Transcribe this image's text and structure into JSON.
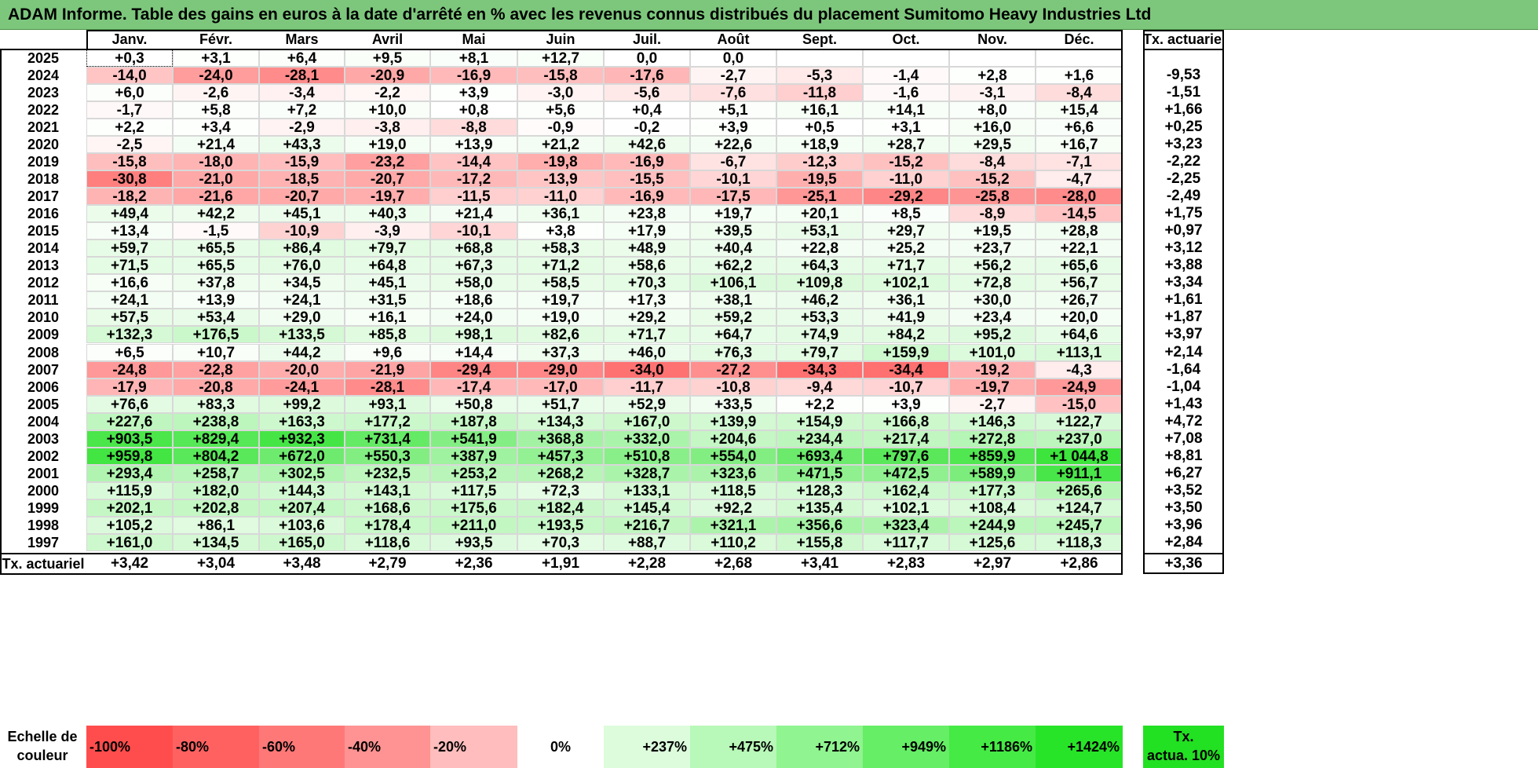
{
  "title": "ADAM Informe. Table des gains en euros à la date d'arrêté en % avec les revenus connus distribués du placement Sumitomo Heavy Industries Ltd",
  "months": [
    "Janv.",
    "Févr.",
    "Mars",
    "Avril",
    "Mai",
    "Juin",
    "Juil.",
    "Août",
    "Sept.",
    "Oct.",
    "Nov.",
    "Déc."
  ],
  "tx_header": "Tx. actuariel",
  "rows": [
    {
      "year": "2025",
      "values": [
        "+0,3",
        "+3,1",
        "+6,4",
        "+9,5",
        "+8,1",
        "+12,7",
        "0,0",
        "0,0",
        "",
        "",
        "",
        ""
      ],
      "tx": ""
    },
    {
      "year": "2024",
      "values": [
        "-14,0",
        "-24,0",
        "-28,1",
        "-20,9",
        "-16,9",
        "-15,8",
        "-17,6",
        "-2,7",
        "-5,3",
        "-1,4",
        "+2,8",
        "+1,6"
      ],
      "tx": "-9,53"
    },
    {
      "year": "2023",
      "values": [
        "+6,0",
        "-2,6",
        "-3,4",
        "-2,2",
        "+3,9",
        "-3,0",
        "-5,6",
        "-7,6",
        "-11,8",
        "-1,6",
        "-3,1",
        "-8,4"
      ],
      "tx": "-1,51"
    },
    {
      "year": "2022",
      "values": [
        "-1,7",
        "+5,8",
        "+7,2",
        "+10,0",
        "+0,8",
        "+5,6",
        "+0,4",
        "+5,1",
        "+16,1",
        "+14,1",
        "+8,0",
        "+15,4"
      ],
      "tx": "+1,66"
    },
    {
      "year": "2021",
      "values": [
        "+2,2",
        "+3,4",
        "-2,9",
        "-3,8",
        "-8,8",
        "-0,9",
        "-0,2",
        "+3,9",
        "+0,5",
        "+3,1",
        "+16,0",
        "+6,6"
      ],
      "tx": "+0,25"
    },
    {
      "year": "2020",
      "values": [
        "-2,5",
        "+21,4",
        "+43,3",
        "+19,0",
        "+13,9",
        "+21,2",
        "+42,6",
        "+22,6",
        "+18,9",
        "+28,7",
        "+29,5",
        "+16,7"
      ],
      "tx": "+3,23"
    },
    {
      "year": "2019",
      "values": [
        "-15,8",
        "-18,0",
        "-15,9",
        "-23,2",
        "-14,4",
        "-19,8",
        "-16,9",
        "-6,7",
        "-12,3",
        "-15,2",
        "-8,4",
        "-7,1"
      ],
      "tx": "-2,22"
    },
    {
      "year": "2018",
      "values": [
        "-30,8",
        "-21,0",
        "-18,5",
        "-20,7",
        "-17,2",
        "-13,9",
        "-15,5",
        "-10,1",
        "-19,5",
        "-11,0",
        "-15,2",
        "-4,7"
      ],
      "tx": "-2,25"
    },
    {
      "year": "2017",
      "values": [
        "-18,2",
        "-21,6",
        "-20,7",
        "-19,7",
        "-11,5",
        "-11,0",
        "-16,9",
        "-17,5",
        "-25,1",
        "-29,2",
        "-25,8",
        "-28,0"
      ],
      "tx": "-2,49"
    },
    {
      "year": "2016",
      "values": [
        "+49,4",
        "+42,2",
        "+45,1",
        "+40,3",
        "+21,4",
        "+36,1",
        "+23,8",
        "+19,7",
        "+20,1",
        "+8,5",
        "-8,9",
        "-14,5"
      ],
      "tx": "+1,75"
    },
    {
      "year": "2015",
      "values": [
        "+13,4",
        "-1,5",
        "-10,9",
        "-3,9",
        "-10,1",
        "+3,8",
        "+17,9",
        "+39,5",
        "+53,1",
        "+29,7",
        "+19,5",
        "+28,8"
      ],
      "tx": "+0,97"
    },
    {
      "year": "2014",
      "values": [
        "+59,7",
        "+65,5",
        "+86,4",
        "+79,7",
        "+68,8",
        "+58,3",
        "+48,9",
        "+40,4",
        "+22,8",
        "+25,2",
        "+23,7",
        "+22,1"
      ],
      "tx": "+3,12"
    },
    {
      "year": "2013",
      "values": [
        "+71,5",
        "+65,5",
        "+76,0",
        "+64,8",
        "+67,3",
        "+71,2",
        "+58,6",
        "+62,2",
        "+64,3",
        "+71,7",
        "+56,2",
        "+65,6"
      ],
      "tx": "+3,88"
    },
    {
      "year": "2012",
      "values": [
        "+16,6",
        "+37,8",
        "+34,5",
        "+45,1",
        "+58,0",
        "+58,5",
        "+70,3",
        "+106,1",
        "+109,8",
        "+102,1",
        "+72,8",
        "+56,7"
      ],
      "tx": "+3,34"
    },
    {
      "year": "2011",
      "values": [
        "+24,1",
        "+13,9",
        "+24,1",
        "+31,5",
        "+18,6",
        "+19,7",
        "+17,3",
        "+38,1",
        "+46,2",
        "+36,1",
        "+30,0",
        "+26,7"
      ],
      "tx": "+1,61"
    },
    {
      "year": "2010",
      "values": [
        "+57,5",
        "+53,4",
        "+29,0",
        "+16,1",
        "+24,0",
        "+19,0",
        "+29,2",
        "+59,2",
        "+53,3",
        "+41,9",
        "+23,4",
        "+20,0"
      ],
      "tx": "+1,87"
    },
    {
      "year": "2009",
      "values": [
        "+132,3",
        "+176,5",
        "+133,5",
        "+85,8",
        "+98,1",
        "+82,6",
        "+71,7",
        "+64,7",
        "+74,9",
        "+84,2",
        "+95,2",
        "+64,6"
      ],
      "tx": "+3,97"
    },
    {
      "year": "2008",
      "values": [
        "+6,5",
        "+10,7",
        "+44,2",
        "+9,6",
        "+14,4",
        "+37,3",
        "+46,0",
        "+76,3",
        "+79,7",
        "+159,9",
        "+101,0",
        "+113,1"
      ],
      "tx": "+2,14"
    },
    {
      "year": "2007",
      "values": [
        "-24,8",
        "-22,8",
        "-20,0",
        "-21,9",
        "-29,4",
        "-29,0",
        "-34,0",
        "-27,2",
        "-34,3",
        "-34,4",
        "-19,2",
        "-4,3"
      ],
      "tx": "-1,64"
    },
    {
      "year": "2006",
      "values": [
        "-17,9",
        "-20,8",
        "-24,1",
        "-28,1",
        "-17,4",
        "-17,0",
        "-11,7",
        "-10,8",
        "-9,4",
        "-10,7",
        "-19,7",
        "-24,9"
      ],
      "tx": "-1,04"
    },
    {
      "year": "2005",
      "values": [
        "+76,6",
        "+83,3",
        "+99,2",
        "+93,1",
        "+50,8",
        "+51,7",
        "+52,9",
        "+33,5",
        "+2,2",
        "+3,9",
        "-2,7",
        "-15,0"
      ],
      "tx": "+1,43"
    },
    {
      "year": "2004",
      "values": [
        "+227,6",
        "+238,8",
        "+163,3",
        "+177,2",
        "+187,8",
        "+134,3",
        "+167,0",
        "+139,9",
        "+154,9",
        "+166,8",
        "+146,3",
        "+122,7"
      ],
      "tx": "+4,72"
    },
    {
      "year": "2003",
      "values": [
        "+903,5",
        "+829,4",
        "+932,3",
        "+731,4",
        "+541,9",
        "+368,8",
        "+332,0",
        "+204,6",
        "+234,4",
        "+217,4",
        "+272,8",
        "+237,0"
      ],
      "tx": "+7,08"
    },
    {
      "year": "2002",
      "values": [
        "+959,8",
        "+804,2",
        "+672,0",
        "+550,3",
        "+387,9",
        "+457,3",
        "+510,8",
        "+554,0",
        "+693,4",
        "+797,6",
        "+859,9",
        "+1 044,8"
      ],
      "tx": "+8,81"
    },
    {
      "year": "2001",
      "values": [
        "+293,4",
        "+258,7",
        "+302,5",
        "+232,5",
        "+253,2",
        "+268,2",
        "+328,7",
        "+323,6",
        "+471,5",
        "+472,5",
        "+589,9",
        "+911,1"
      ],
      "tx": "+6,27"
    },
    {
      "year": "2000",
      "values": [
        "+115,9",
        "+182,0",
        "+144,3",
        "+143,1",
        "+117,5",
        "+72,3",
        "+133,1",
        "+118,5",
        "+128,3",
        "+162,4",
        "+177,3",
        "+265,6"
      ],
      "tx": "+3,52"
    },
    {
      "year": "1999",
      "values": [
        "+202,1",
        "+202,8",
        "+207,4",
        "+168,6",
        "+175,6",
        "+182,4",
        "+145,4",
        "+92,2",
        "+135,4",
        "+102,1",
        "+108,4",
        "+124,7"
      ],
      "tx": "+3,50"
    },
    {
      "year": "1998",
      "values": [
        "+105,2",
        "+86,1",
        "+103,6",
        "+178,4",
        "+211,0",
        "+193,5",
        "+216,7",
        "+321,1",
        "+356,6",
        "+323,4",
        "+244,9",
        "+245,7"
      ],
      "tx": "+3,96"
    },
    {
      "year": "1997",
      "values": [
        "+161,0",
        "+134,5",
        "+165,0",
        "+118,6",
        "+93,5",
        "+70,3",
        "+88,7",
        "+110,2",
        "+155,8",
        "+117,7",
        "+125,6",
        "+118,3"
      ],
      "tx": "+2,84"
    }
  ],
  "footer_row": {
    "label": "Tx. actuariel",
    "values": [
      "+3,42",
      "+3,04",
      "+3,48",
      "+2,79",
      "+2,36",
      "+1,91",
      "+2,28",
      "+2,68",
      "+3,41",
      "+2,83",
      "+2,97",
      "+2,86"
    ],
    "tx": "+3,36"
  },
  "legend": {
    "label_line1": "Echelle de",
    "label_line2": "couleur",
    "items": [
      {
        "text": "-100%",
        "color": "#ff4d4d"
      },
      {
        "text": "-80%",
        "color": "#ff6161"
      },
      {
        "text": "-60%",
        "color": "#ff7878"
      },
      {
        "text": "-40%",
        "color": "#ff9393"
      },
      {
        "text": "-20%",
        "color": "#ffbdbd"
      },
      {
        "text": "0%",
        "color": "#ffffff"
      },
      {
        "text": "+237%",
        "color": "#dcfcdc"
      },
      {
        "text": "+475%",
        "color": "#b8f8b8"
      },
      {
        "text": "+712%",
        "color": "#90f490"
      },
      {
        "text": "+949%",
        "color": "#66ee66"
      },
      {
        "text": "+1186%",
        "color": "#45ea45"
      },
      {
        "text": "+1424%",
        "color": "#28e428"
      }
    ],
    "tx_line1": "Tx.",
    "tx_line2": "actua. 10%",
    "tx_color": "#22e022"
  }
}
